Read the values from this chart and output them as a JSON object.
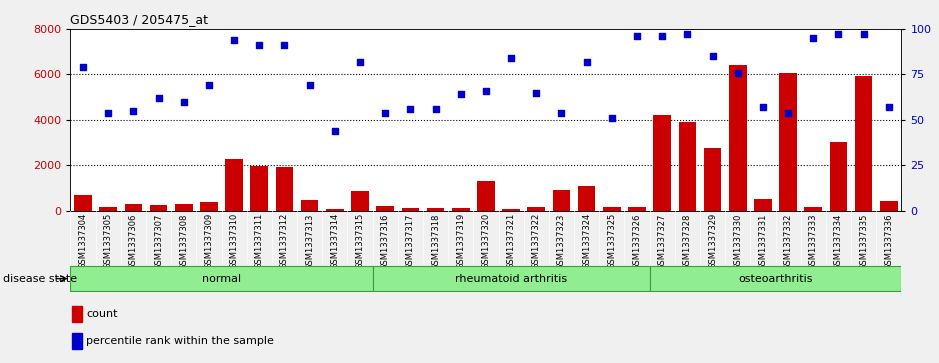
{
  "title": "GDS5403 / 205475_at",
  "samples": [
    "GSM1337304",
    "GSM1337305",
    "GSM1337306",
    "GSM1337307",
    "GSM1337308",
    "GSM1337309",
    "GSM1337310",
    "GSM1337311",
    "GSM1337312",
    "GSM1337313",
    "GSM1337314",
    "GSM1337315",
    "GSM1337316",
    "GSM1337317",
    "GSM1337318",
    "GSM1337319",
    "GSM1337320",
    "GSM1337321",
    "GSM1337322",
    "GSM1337323",
    "GSM1337324",
    "GSM1337325",
    "GSM1337326",
    "GSM1337327",
    "GSM1337328",
    "GSM1337329",
    "GSM1337330",
    "GSM1337331",
    "GSM1337332",
    "GSM1337333",
    "GSM1337334",
    "GSM1337335",
    "GSM1337336"
  ],
  "counts": [
    700,
    150,
    280,
    240,
    290,
    380,
    2250,
    1950,
    1900,
    450,
    50,
    850,
    180,
    100,
    120,
    120,
    1300,
    50,
    150,
    900,
    1100,
    150,
    150,
    4200,
    3900,
    2750,
    6400,
    500,
    6050,
    150,
    3000,
    5950,
    400
  ],
  "percentile_ranks": [
    79,
    54,
    55,
    62,
    60,
    69,
    94,
    91,
    91,
    69,
    44,
    82,
    54,
    56,
    56,
    64,
    66,
    84,
    65,
    54,
    82,
    51,
    96,
    96,
    97,
    85,
    76,
    57,
    54,
    95,
    97,
    97,
    57
  ],
  "group_boundaries": [
    0,
    12,
    23,
    33
  ],
  "group_labels": [
    "normal",
    "rheumatoid arthritis",
    "osteoarthritis"
  ],
  "group_color": "#90EE90",
  "group_border_color": "#3a9e3a",
  "ylim_left": [
    0,
    8000
  ],
  "ylim_right": [
    0,
    100
  ],
  "yticks_left": [
    0,
    2000,
    4000,
    6000,
    8000
  ],
  "yticks_right": [
    0,
    25,
    50,
    75,
    100
  ],
  "bar_color": "#CC0000",
  "dot_color": "#0000CC",
  "bg_color": "#f0f0f0",
  "plot_bg": "#ffffff",
  "left_label_color": "#CC0000",
  "right_label_color": "#0000CC",
  "disease_state_label": "disease state",
  "xtick_bg": "#d4d4d4"
}
